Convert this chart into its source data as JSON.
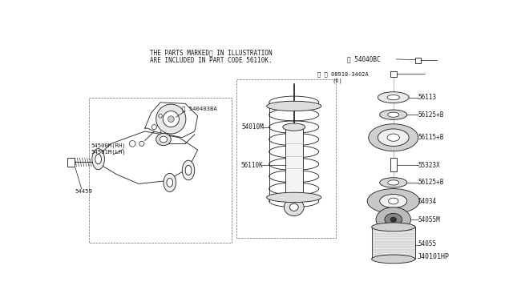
{
  "bg_color": "#ffffff",
  "header_line1": "THE PARTS MARKED※ IN ILLUSTRATION",
  "header_line2": "ARE INCLUDED IN PART CODE 56110K.",
  "footer": "J40101HP",
  "marker": "※",
  "black": "#1a1a1a"
}
